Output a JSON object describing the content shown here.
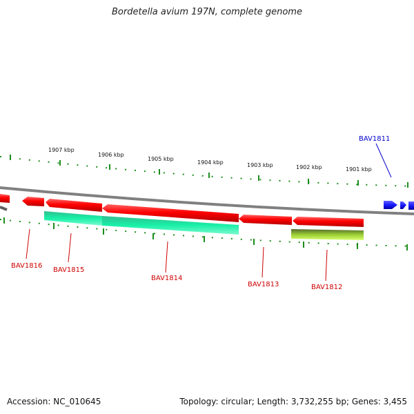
{
  "title": "Bordetella avium 197N, complete genome",
  "footer": {
    "accession": "Accession: NC_010645",
    "summary": "Topology: circular; Length: 3,732,255 bp; Genes: 3,455"
  },
  "colors": {
    "forward_gene": "#1a1aff",
    "reverse_gene": "#ff0000",
    "rna_teal": "#19e6a0",
    "rna_olive": "#9acd32",
    "tick": "#1a8c1a",
    "backbone": "#808080"
  },
  "ticks": [
    {
      "label": "1907 kbp"
    },
    {
      "label": "1906 kbp"
    },
    {
      "label": "1905 kbp"
    },
    {
      "label": "1904 kbp"
    },
    {
      "label": "1903 kbp"
    },
    {
      "label": "1902 kbp"
    },
    {
      "label": "1901 kbp"
    }
  ],
  "genes": [
    {
      "name": "BAV1816",
      "strand": "reverse"
    },
    {
      "name": "BAV1815",
      "strand": "reverse"
    },
    {
      "name": "BAV1814",
      "strand": "reverse"
    },
    {
      "name": "BAV1813",
      "strand": "reverse"
    },
    {
      "name": "BAV1812",
      "strand": "reverse"
    },
    {
      "name": "BAV1811",
      "strand": "forward"
    }
  ]
}
